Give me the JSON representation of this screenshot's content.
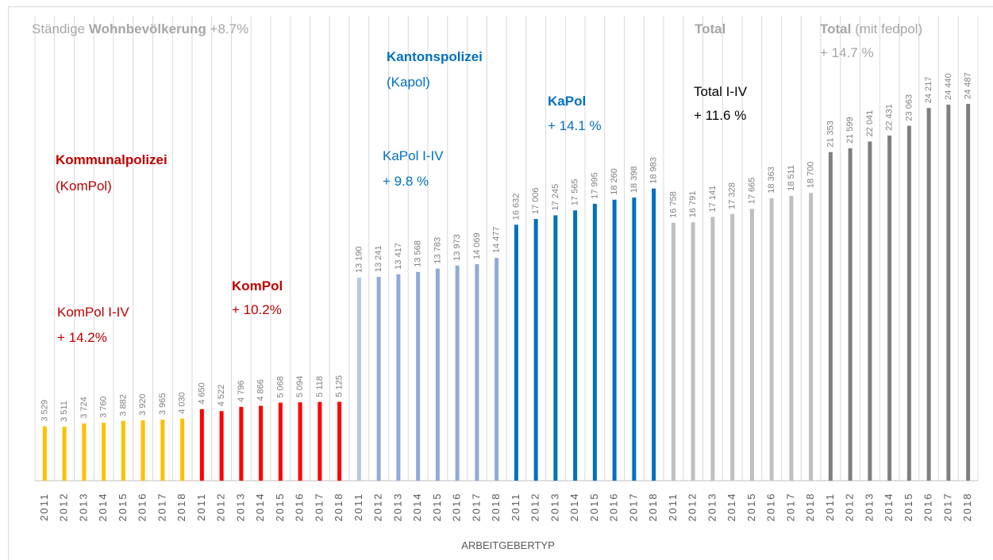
{
  "chart_data": {
    "type": "bar",
    "x_label": "ARBEITGEBERTYP",
    "categories": [
      "2011",
      "2012",
      "2013",
      "2014",
      "2015",
      "2016",
      "2017",
      "2018",
      "2011",
      "2012",
      "2013",
      "2014",
      "2015",
      "2016",
      "2017",
      "2018",
      "2011",
      "2012",
      "2013",
      "2014",
      "2015",
      "2016",
      "2017",
      "2018",
      "2011",
      "2012",
      "2013",
      "2014",
      "2015",
      "2016",
      "2017",
      "2018",
      "2011",
      "2012",
      "2013",
      "2014",
      "2015",
      "2016",
      "2017",
      "2018",
      "2011",
      "2012",
      "2013",
      "2014",
      "2015",
      "2016",
      "2017",
      "2018"
    ],
    "values": [
      3529,
      3511,
      3724,
      3760,
      3882,
      3920,
      3965,
      4030,
      4650,
      4522,
      4796,
      4866,
      5068,
      5094,
      5118,
      5125,
      13190,
      13241,
      13417,
      13568,
      13783,
      13973,
      14069,
      14477,
      16632,
      17006,
      17245,
      17565,
      17995,
      18260,
      18398,
      18983,
      16758,
      16791,
      17141,
      17328,
      17665,
      18363,
      18511,
      18700,
      21353,
      21599,
      22041,
      22431,
      23063,
      24217,
      24440,
      24487
    ],
    "value_labels": [
      "3 529",
      "3 511",
      "3 724",
      "3 760",
      "3 882",
      "3 920",
      "3 965",
      "4 030",
      "4 650",
      "4 522",
      "4 796",
      "4 866",
      "5 068",
      "5 094",
      "5 118",
      "5 125",
      "13 190",
      "13 241",
      "13 417",
      "13 568",
      "13 783",
      "13 973",
      "14 069",
      "14 477",
      "16 632",
      "17 006",
      "17 245",
      "17 565",
      "17 995",
      "18 260",
      "18 398",
      "18 983",
      "16 758",
      "16 791",
      "17 141",
      "17 328",
      "17 665",
      "18 363",
      "18 511",
      "18 700",
      "21 353",
      "21 599",
      "22 041",
      "22 431",
      "23 063",
      "24 217",
      "24 440",
      "24 487"
    ],
    "colors": [
      "#ffc000",
      "#ffc000",
      "#ffc000",
      "#ffc000",
      "#ffc000",
      "#ffc000",
      "#ffc000",
      "#ffc000",
      "#ff0000",
      "#ff0000",
      "#ff0000",
      "#ff0000",
      "#ff0000",
      "#ff0000",
      "#ff0000",
      "#ff0000",
      "#b4c7e7",
      "#8faadc",
      "#8faadc",
      "#8faadc",
      "#8faadc",
      "#8faadc",
      "#8faadc",
      "#8faadc",
      "#0070c0",
      "#0070c0",
      "#0070c0",
      "#0070c0",
      "#0070c0",
      "#0070c0",
      "#0070c0",
      "#0070c0",
      "#bfbfbf",
      "#bfbfbf",
      "#bfbfbf",
      "#bfbfbf",
      "#bfbfbf",
      "#bfbfbf",
      "#bfbfbf",
      "#bfbfbf",
      "#808080",
      "#808080",
      "#808080",
      "#808080",
      "#808080",
      "#808080",
      "#808080",
      "#808080"
    ],
    "ylim": [
      0,
      25000
    ],
    "annotations": [
      {
        "color": "#a6a6a6",
        "lines": [
          [
            {
              "text": "Ständige ",
              "bold": false
            },
            {
              "text": "Wohnbevölkerung",
              "bold": true
            },
            {
              "text": " +8.7%",
              "bold": false
            }
          ]
        ]
      },
      {
        "color": "#c00000",
        "lines": [
          [
            {
              "text": "Kommunalpolizei",
              "bold": true
            }
          ],
          [
            {
              "text": "(KomPol)",
              "bold": false
            }
          ]
        ]
      },
      {
        "color": "#c00000",
        "lines": [
          [
            {
              "text": "KomPol I-IV",
              "bold": false
            }
          ],
          [
            {
              "text": "+ 14.2%",
              "bold": false
            }
          ]
        ]
      },
      {
        "color": "#c00000",
        "lines": [
          [
            {
              "text": "KomPol",
              "bold": true
            }
          ],
          [
            {
              "text": "+ 10.2%",
              "bold": false
            }
          ]
        ]
      },
      {
        "color": "#0070c0",
        "lines": [
          [
            {
              "text": "Kantonspolizei",
              "bold": true
            }
          ],
          [
            {
              "text": "(Kapol)",
              "bold": false
            }
          ]
        ]
      },
      {
        "color": "#0070c0",
        "lines": [
          [
            {
              "text": "KaPol I-IV",
              "bold": false
            }
          ],
          [
            {
              "text": "+ 9.8 %",
              "bold": false
            }
          ]
        ]
      },
      {
        "color": "#0070c0",
        "lines": [
          [
            {
              "text": "KaPol",
              "bold": true
            }
          ],
          [
            {
              "text": "+ 14.1 %",
              "bold": false
            }
          ]
        ]
      },
      {
        "color": "#a6a6a6",
        "lines": [
          [
            {
              "text": "Total",
              "bold": true
            }
          ]
        ]
      },
      {
        "color": "#000000",
        "lines": [
          [
            {
              "text": "Total I-IV",
              "bold": false
            }
          ],
          [
            {
              "text": "+ 11.6 %",
              "bold": false
            }
          ]
        ]
      },
      {
        "color": "#a6a6a6",
        "lines": [
          [
            {
              "text": "Total",
              "bold": true
            },
            {
              "text": " (mit fedpol)",
              "bold": false
            }
          ],
          [
            {
              "text": "+ 14.7 %",
              "bold": false
            }
          ]
        ]
      }
    ]
  }
}
